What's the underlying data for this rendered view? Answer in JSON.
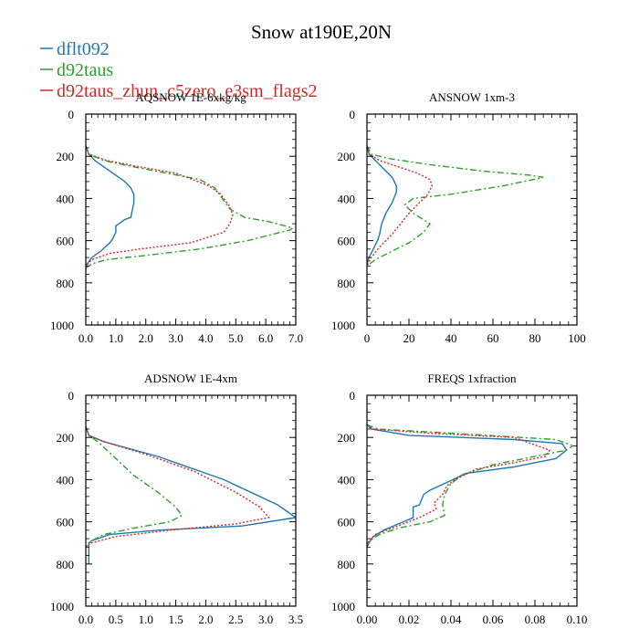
{
  "figure": {
    "title": "Snow at190E,20N"
  },
  "legend": [
    {
      "label": "dflt092",
      "color": "#1f77b4",
      "dash": "solid"
    },
    {
      "label": "d92taus",
      "color": "#2ca02c",
      "dash": "dashed"
    },
    {
      "label": "d92taus_zhun_c5zero_e3sm_flags2",
      "color": "#d62728",
      "dash": "dotted"
    }
  ],
  "chart_data": [
    {
      "type": "line",
      "title": "AQSNOW  1E-6xkg/kg",
      "xlim": [
        0,
        7
      ],
      "xticks": [
        "0.0",
        "1.0",
        "2.0",
        "3.0",
        "4.0",
        "5.0",
        "6.0",
        "7.0"
      ],
      "xtick_values": [
        0,
        1,
        2,
        3,
        4,
        5,
        6,
        7
      ],
      "ylim": [
        0,
        1000
      ],
      "yticks": [
        "0",
        "200",
        "400",
        "600",
        "800",
        "1000"
      ],
      "ytick_values": [
        0,
        200,
        400,
        600,
        800,
        1000
      ],
      "y_inverted": true,
      "series": [
        {
          "name": "dflt092",
          "x": [
            0,
            0.1,
            0.3,
            0.7,
            1.0,
            1.3,
            1.5,
            1.6,
            1.6,
            1.5,
            1.3,
            1.0,
            1.0,
            0.9,
            0.8,
            0.5,
            0.2,
            0.1,
            0
          ],
          "y": [
            150,
            190,
            220,
            260,
            290,
            320,
            350,
            380,
            420,
            490,
            500,
            530,
            560,
            590,
            610,
            650,
            680,
            700,
            720
          ]
        },
        {
          "name": "d92taus",
          "x": [
            0,
            0.1,
            0.6,
            1.6,
            2.7,
            3.8,
            4.3,
            4.6,
            4.8,
            5.3,
            6.1,
            6.9,
            6.8,
            6.5,
            5.4,
            3.8,
            2.0,
            0.7,
            0.2,
            0
          ],
          "y": [
            150,
            190,
            220,
            250,
            280,
            310,
            350,
            410,
            450,
            490,
            510,
            540,
            550,
            560,
            600,
            640,
            670,
            690,
            710,
            730
          ]
        },
        {
          "name": "d92taus_zhun_c5zero_e3sm_flags2",
          "x": [
            0,
            0.1,
            0.7,
            1.8,
            3.0,
            4.1,
            4.5,
            4.8,
            4.9,
            4.8,
            4.6,
            3.5,
            1.8,
            0.8,
            0.2,
            0
          ],
          "y": [
            150,
            190,
            220,
            250,
            280,
            340,
            380,
            440,
            480,
            520,
            560,
            610,
            640,
            660,
            690,
            720
          ]
        }
      ]
    },
    {
      "type": "line",
      "title": "ANSNOW  1xm-3",
      "xlim": [
        0,
        100
      ],
      "xticks": [
        "0",
        "20",
        "40",
        "60",
        "80",
        "100"
      ],
      "xtick_values": [
        0,
        20,
        40,
        60,
        80,
        100
      ],
      "ylim": [
        0,
        1000
      ],
      "yticks": [
        "0",
        "200",
        "400",
        "600",
        "800",
        "1000"
      ],
      "ytick_values": [
        0,
        200,
        400,
        600,
        800,
        1000
      ],
      "y_inverted": true,
      "series": [
        {
          "name": "dflt092",
          "x": [
            0,
            1,
            4,
            8,
            12,
            14,
            14,
            12,
            9,
            7,
            6,
            5,
            3,
            1,
            0
          ],
          "y": [
            150,
            190,
            220,
            260,
            300,
            340,
            370,
            420,
            470,
            520,
            570,
            600,
            640,
            680,
            710
          ]
        },
        {
          "name": "d92taus",
          "x": [
            0,
            2,
            10,
            30,
            55,
            78,
            84,
            65,
            40,
            22,
            18,
            22,
            30,
            27,
            20,
            12,
            4,
            0
          ],
          "y": [
            150,
            190,
            210,
            240,
            270,
            290,
            300,
            340,
            380,
            400,
            430,
            470,
            520,
            560,
            610,
            650,
            690,
            720
          ]
        },
        {
          "name": "d92taus_zhun_c5zero_e3sm_flags2",
          "x": [
            0,
            1,
            6,
            15,
            24,
            30,
            31,
            29,
            25,
            20,
            16,
            12,
            6,
            2,
            0
          ],
          "y": [
            150,
            190,
            220,
            250,
            280,
            310,
            340,
            380,
            420,
            470,
            520,
            570,
            630,
            680,
            720
          ]
        }
      ]
    },
    {
      "type": "line",
      "title": "ADSNOW  1E-4xm",
      "xlim": [
        0,
        3.5
      ],
      "xticks": [
        "0.0",
        "0.5",
        "1.0",
        "1.5",
        "2.0",
        "2.5",
        "3.0",
        "3.5"
      ],
      "xtick_values": [
        0,
        0.5,
        1,
        1.5,
        2,
        2.5,
        3,
        3.5
      ],
      "ylim": [
        0,
        1000
      ],
      "yticks": [
        "0",
        "200",
        "400",
        "600",
        "800",
        "1000"
      ],
      "ytick_values": [
        0,
        200,
        400,
        600,
        800,
        1000
      ],
      "y_inverted": true,
      "series": [
        {
          "name": "dflt092",
          "x": [
            0,
            0.05,
            0.3,
            1.2,
            2.3,
            3.2,
            3.35,
            3.5,
            2.6,
            1.2,
            0.4,
            0.1,
            0.05,
            0.05
          ],
          "y": [
            150,
            190,
            220,
            290,
            400,
            520,
            550,
            580,
            620,
            640,
            660,
            690,
            700,
            800
          ]
        },
        {
          "name": "d92taus",
          "x": [
            0,
            0.05,
            0.2,
            0.5,
            0.8,
            1.2,
            1.5,
            1.6,
            1.4,
            0.8,
            0.3,
            0.1,
            0
          ],
          "y": [
            150,
            190,
            220,
            300,
            380,
            460,
            530,
            570,
            600,
            630,
            660,
            690,
            720
          ]
        },
        {
          "name": "d92taus_zhun_c5zero_e3sm_flags2",
          "x": [
            0,
            0.05,
            0.3,
            1.0,
            1.8,
            2.5,
            2.9,
            3.05,
            2.5,
            1.4,
            0.5,
            0.1,
            0
          ],
          "y": [
            150,
            190,
            220,
            280,
            360,
            460,
            530,
            580,
            610,
            640,
            670,
            700,
            720
          ]
        }
      ]
    },
    {
      "type": "line",
      "title": "FREQS  1xfraction",
      "xlim": [
        0,
        0.1
      ],
      "xticks": [
        "0.00",
        "0.02",
        "0.04",
        "0.06",
        "0.08",
        "0.10"
      ],
      "xtick_values": [
        0,
        0.02,
        0.04,
        0.06,
        0.08,
        0.1
      ],
      "ylim": [
        0,
        1000
      ],
      "yticks": [
        "0",
        "200",
        "400",
        "600",
        "800",
        "1000"
      ],
      "ytick_values": [
        0,
        200,
        400,
        600,
        800,
        1000
      ],
      "y_inverted": true,
      "series": [
        {
          "name": "dflt092",
          "x": [
            0,
            0.002,
            0.02,
            0.07,
            0.093,
            0.095,
            0.09,
            0.07,
            0.047,
            0.041,
            0.03,
            0.027,
            0.025,
            0.022,
            0.022,
            0.015,
            0.008,
            0.003,
            0.001,
            0
          ],
          "y": [
            140,
            160,
            190,
            210,
            230,
            260,
            300,
            340,
            370,
            400,
            450,
            470,
            520,
            530,
            580,
            610,
            640,
            670,
            700,
            720
          ]
        },
        {
          "name": "d92taus",
          "x": [
            0,
            0.005,
            0.04,
            0.09,
            0.098,
            0.095,
            0.08,
            0.06,
            0.045,
            0.04,
            0.037,
            0.036,
            0.037,
            0.03,
            0.015,
            0.006,
            0.001,
            0
          ],
          "y": [
            140,
            160,
            180,
            210,
            240,
            260,
            290,
            330,
            380,
            420,
            470,
            520,
            570,
            600,
            630,
            660,
            690,
            720
          ]
        },
        {
          "name": "d92taus_zhun_c5zero_e3sm_flags2",
          "x": [
            0,
            0.003,
            0.03,
            0.07,
            0.087,
            0.085,
            0.07,
            0.052,
            0.042,
            0.038,
            0.036,
            0.032,
            0.033,
            0.025,
            0.012,
            0.004,
            0.001,
            0
          ],
          "y": [
            140,
            160,
            180,
            200,
            260,
            290,
            320,
            350,
            400,
            430,
            470,
            510,
            540,
            580,
            630,
            660,
            690,
            720
          ]
        }
      ]
    }
  ]
}
